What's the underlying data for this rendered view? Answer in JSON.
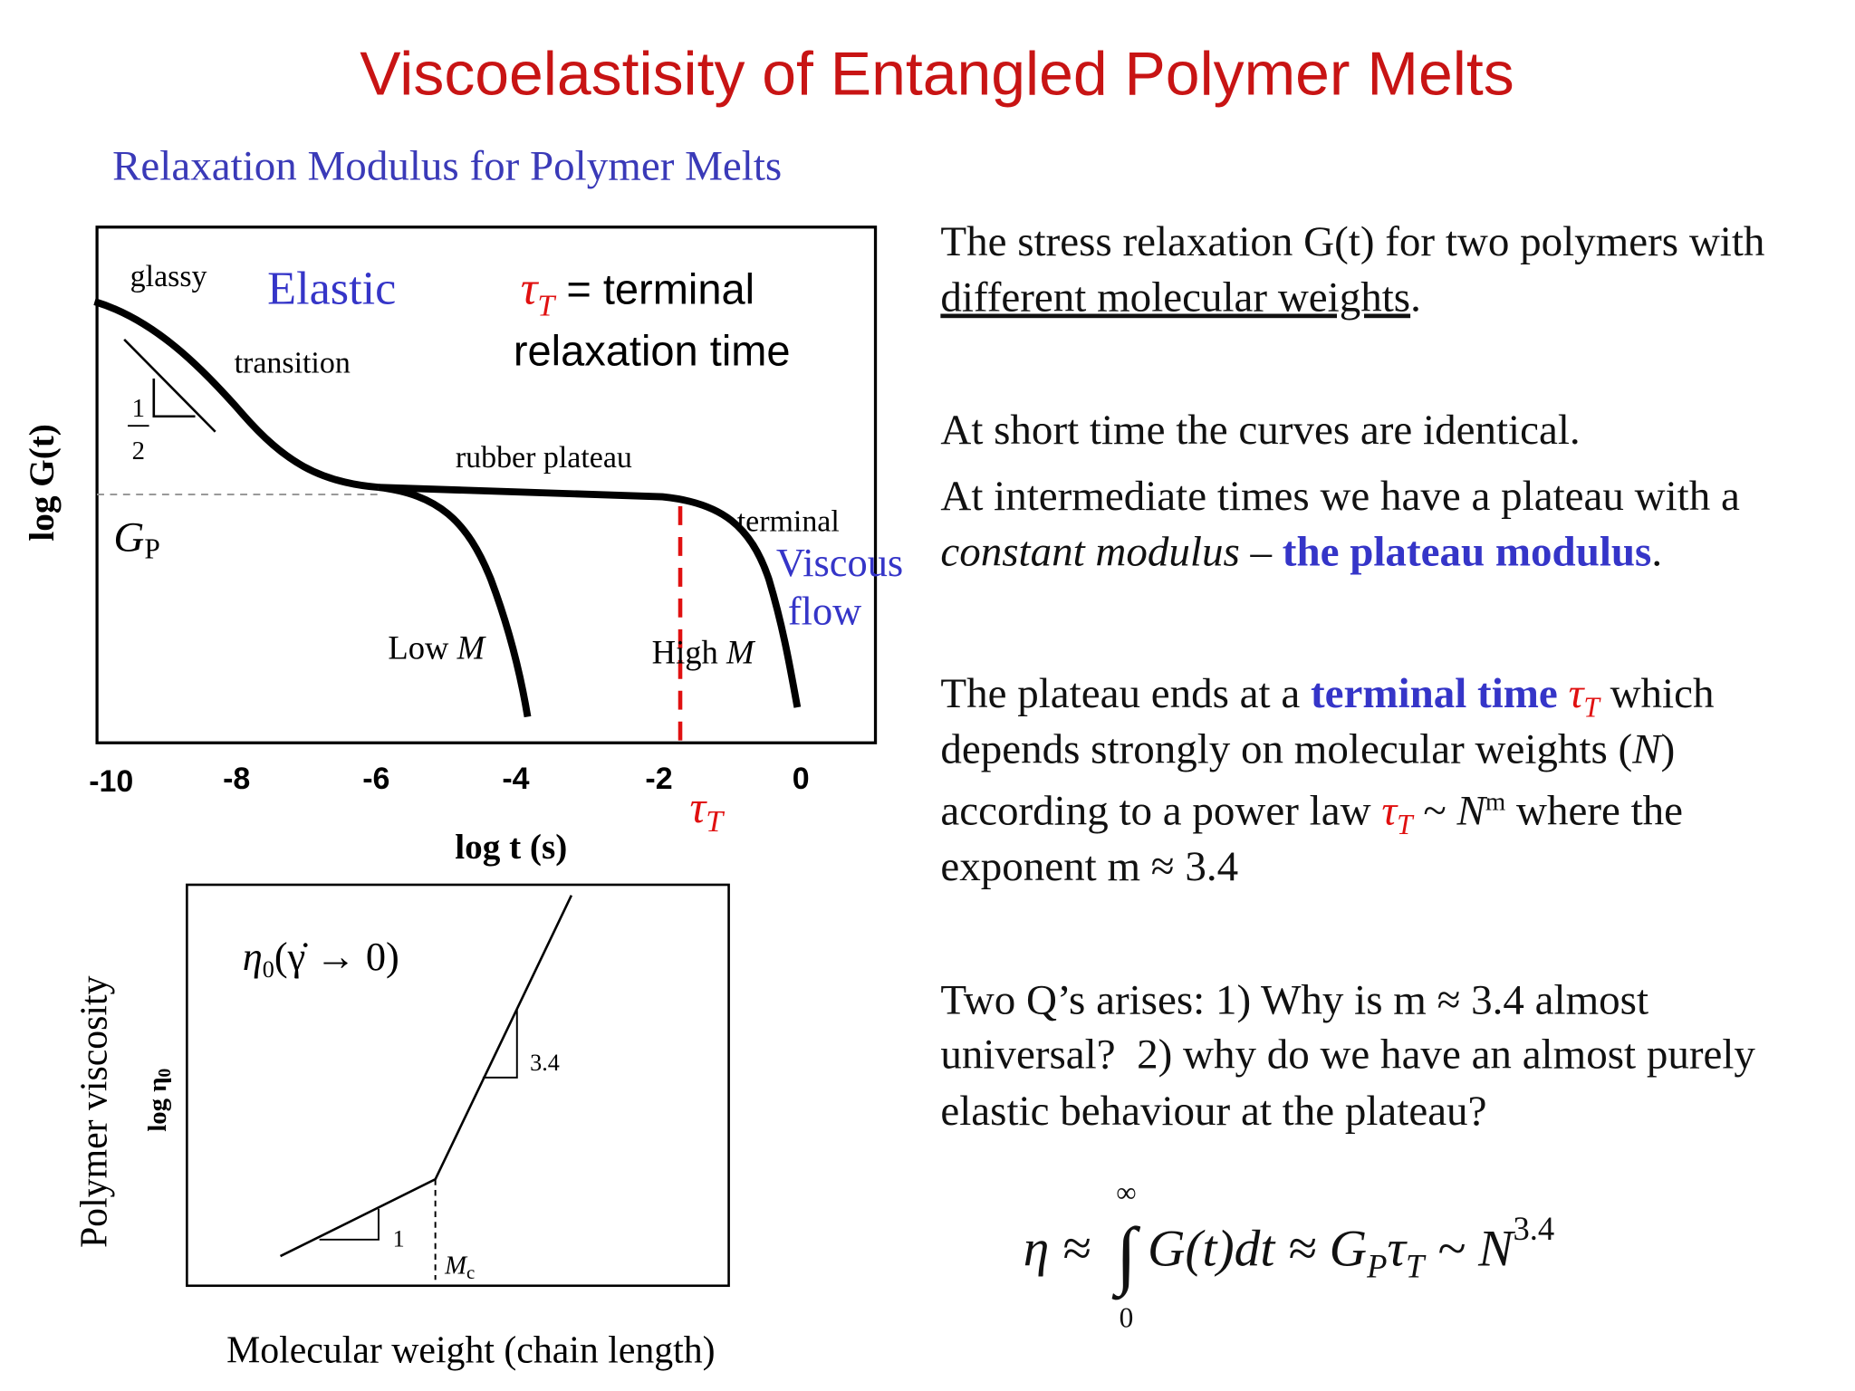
{
  "title": "Viscoelastisity of Entangled Polymer Melts",
  "subtitle": "Relaxation Modulus for Polymer Melts",
  "relaxation_figure": {
    "y_axis_label": "log G(t)",
    "x_axis_label": "log t (s)",
    "x_tick_labels": [
      "-10",
      "-8",
      "-6",
      "-4",
      "-2",
      "0"
    ],
    "regions": {
      "glassy": "glassy",
      "transition": "transition",
      "rubber_plateau": "rubber plateau",
      "terminal": "terminal"
    },
    "elastic": "Elastic",
    "tau_definition": {
      "symbol": "τ",
      "subscript": "T",
      "line1": " = terminal",
      "line2": "relaxation time"
    },
    "viscous_flow": [
      "Viscous",
      "flow"
    ],
    "plateau_modulus": {
      "symbol": "G",
      "subscript": "P"
    },
    "slope": {
      "numerator": "1",
      "denominator": "2"
    },
    "curves": {
      "low": [
        "Low ",
        "M"
      ],
      "high": [
        "High ",
        "M"
      ]
    },
    "tau_marker": {
      "symbol": "τ",
      "subscript": "T"
    }
  },
  "viscosity_figure": {
    "y_axis_label": "Polymer viscosity",
    "inner_y_label": {
      "text": "log η",
      "subscript": "0"
    },
    "x_axis_label": "Molecular weight (chain length)",
    "formula": {
      "eta": "η",
      "subscript": "0",
      "rest": "(γ̇ → 0)"
    },
    "slopes": [
      "1",
      "3.4"
    ],
    "critical_mass": {
      "symbol": "M",
      "subscript": "c"
    }
  },
  "text": {
    "p1": [
      [
        "The stress relaxation G(t) for two polymers with"
      ],
      [
        "different molecular weights",
        "."
      ]
    ],
    "p2": [
      [
        "At short time the curves are identical."
      ]
    ],
    "p3": [
      [
        "At intermediate times we have a plateau with a"
      ],
      [
        "constant modulus",
        " – ",
        "the plateau modulus",
        "."
      ]
    ],
    "p4": [
      [
        "The plateau ends at a ",
        "terminal time",
        " ",
        "τ",
        "T",
        " which"
      ],
      [
        "depends strongly on molecular weights (",
        "N",
        ")"
      ],
      [
        "according to a power law ",
        "τ",
        "T",
        " ~ ",
        "N",
        "m",
        " where the"
      ],
      [
        "exponent m ≈ 3.4"
      ]
    ],
    "p5": [
      [
        "Two Q’s arises: 1) Why is m ≈ 3.4 almost"
      ],
      [
        "universal?  2) why do we have an almost purely"
      ],
      [
        "elastic behaviour at the plateau?"
      ]
    ]
  },
  "equation": {
    "lhs": "η ≈ ",
    "integral": "∫",
    "upper": "∞",
    "lower": "0",
    "integrand": "G(t)dt ≈ G",
    "g_sub": "P",
    "tau": "τ",
    "tau_sub": "T",
    "tilde": " ~ N",
    "power": "3.4"
  }
}
